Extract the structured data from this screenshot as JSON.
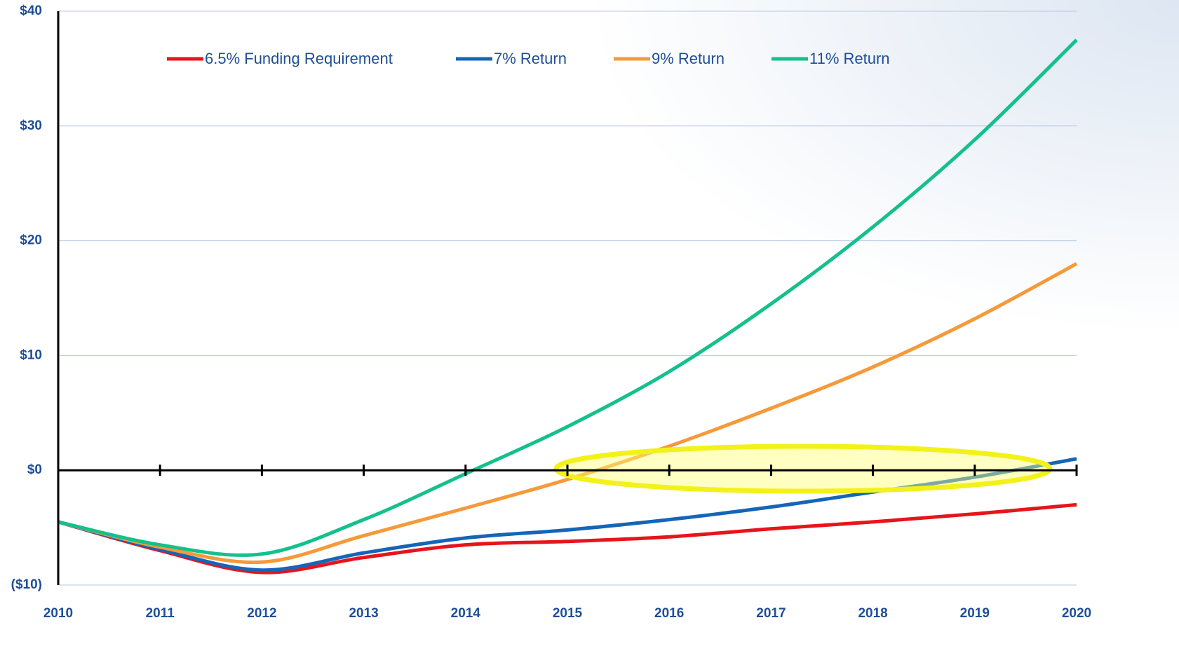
{
  "chart_data": {
    "type": "line",
    "categories": [
      "2010",
      "2011",
      "2012",
      "2013",
      "2014",
      "2015",
      "2016",
      "2017",
      "2018",
      "2019",
      "2020"
    ],
    "series": [
      {
        "name": "6.5% Funding Requirement",
        "color": "#e8141b",
        "values": [
          -4.5,
          -7.0,
          -8.9,
          -7.6,
          -6.5,
          -6.2,
          -5.8,
          -5.1,
          -4.5,
          -3.8,
          -3.0
        ]
      },
      {
        "name": "7% Return",
        "color": "#1565b8",
        "values": [
          -4.5,
          -6.9,
          -8.7,
          -7.2,
          -5.9,
          -5.2,
          -4.3,
          -3.2,
          -1.9,
          -0.6,
          1.0
        ]
      },
      {
        "name": "9% Return",
        "color": "#f59a3a",
        "values": [
          -4.5,
          -6.7,
          -8.0,
          -5.7,
          -3.3,
          -0.8,
          2.1,
          5.4,
          9.0,
          13.2,
          18.0
        ]
      },
      {
        "name": "11% Return",
        "color": "#14c08b",
        "values": [
          -4.5,
          -6.5,
          -7.3,
          -4.3,
          -0.3,
          3.8,
          8.6,
          14.5,
          21.2,
          28.8,
          37.5
        ]
      }
    ],
    "ylim": [
      -10,
      40
    ],
    "yticks": [
      {
        "value": -10,
        "label": "($10)"
      },
      {
        "value": 0,
        "label": "$0"
      },
      {
        "value": 10,
        "label": "$10"
      },
      {
        "value": 20,
        "label": "$20"
      },
      {
        "value": 30,
        "label": "$30"
      },
      {
        "value": 40,
        "label": "$40"
      }
    ],
    "grid": true,
    "legend": "top"
  }
}
